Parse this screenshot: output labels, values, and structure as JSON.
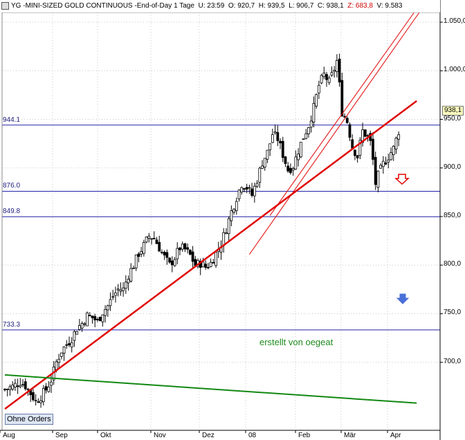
{
  "header": {
    "symbol": "YG",
    "name": "MINI-SIZED GOLD CONTINUOUS",
    "interval": "End-of-Day 1 Tage",
    "u": "U: 23:59",
    "o": "O: 920,7",
    "h": "H: 939,5",
    "l": "L: 906,7",
    "c": "C: 938,1",
    "z": "Z: 683,8",
    "v": "V: 9.583"
  },
  "ohne_orders_label": "Ohne Orders",
  "watermark": "erstellt von oegeat",
  "last_price": "938,1",
  "colors": {
    "candle": "#000000",
    "trend_red": "#e00000",
    "trend_green": "#118811",
    "hline": "#2222aa",
    "grid": "#c8c8c8",
    "arrow_red": "#e00000",
    "arrow_blue": "#4a6fd8"
  },
  "chart_data": {
    "type": "candlestick",
    "ylim": [
      630,
      1060
    ],
    "y_ticks": [
      "1.050,0",
      "1.000,0",
      "950,0",
      "900,0",
      "850,0",
      "800,0",
      "750,0",
      "700,0"
    ],
    "y_tick_values": [
      1050,
      1000,
      950,
      900,
      850,
      800,
      750,
      700
    ],
    "x_ticks": [
      "Aug",
      "Sep",
      "Okt",
      "Nov",
      "Dez",
      "08",
      "Feb",
      "Mär",
      "Apr"
    ],
    "horizontal_levels": [
      {
        "label": "944.1",
        "value": 944.1
      },
      {
        "label": "876.0",
        "value": 876.0
      },
      {
        "label": "849.8",
        "value": 849.8
      },
      {
        "label": "733.3",
        "value": 733.3
      }
    ],
    "close_path": [
      [
        0,
        672
      ],
      [
        3,
        675
      ],
      [
        6,
        680
      ],
      [
        8,
        676
      ],
      [
        10,
        668
      ],
      [
        12,
        660
      ],
      [
        14,
        665
      ],
      [
        16,
        672
      ],
      [
        18,
        682
      ],
      [
        20,
        700
      ],
      [
        22,
        712
      ],
      [
        24,
        718
      ],
      [
        26,
        725
      ],
      [
        28,
        735
      ],
      [
        30,
        740
      ],
      [
        32,
        748
      ],
      [
        34,
        746
      ],
      [
        36,
        742
      ],
      [
        38,
        752
      ],
      [
        40,
        758
      ],
      [
        42,
        768
      ],
      [
        44,
        775
      ],
      [
        46,
        775
      ],
      [
        48,
        790
      ],
      [
        50,
        800
      ],
      [
        52,
        812
      ],
      [
        54,
        820
      ],
      [
        56,
        830
      ],
      [
        58,
        828
      ],
      [
        60,
        818
      ],
      [
        62,
        808
      ],
      [
        64,
        800
      ],
      [
        66,
        808
      ],
      [
        68,
        818
      ],
      [
        70,
        816
      ],
      [
        72,
        810
      ],
      [
        74,
        800
      ],
      [
        76,
        802
      ],
      [
        78,
        798
      ],
      [
        80,
        802
      ],
      [
        82,
        812
      ],
      [
        84,
        822
      ],
      [
        86,
        838
      ],
      [
        88,
        855
      ],
      [
        90,
        870
      ],
      [
        92,
        884
      ],
      [
        94,
        880
      ],
      [
        96,
        872
      ],
      [
        98,
        888
      ],
      [
        100,
        906
      ],
      [
        102,
        916
      ],
      [
        104,
        935
      ],
      [
        106,
        930
      ],
      [
        108,
        914
      ],
      [
        110,
        898
      ],
      [
        112,
        902
      ],
      [
        114,
        918
      ],
      [
        116,
        932
      ],
      [
        118,
        944
      ],
      [
        120,
        962
      ],
      [
        122,
        985
      ],
      [
        124,
        996
      ],
      [
        126,
        988
      ],
      [
        128,
        1002
      ],
      [
        129,
        1010
      ],
      [
        130,
        985
      ],
      [
        131,
        958
      ],
      [
        133,
        948
      ],
      [
        135,
        922
      ],
      [
        137,
        912
      ],
      [
        139,
        938
      ],
      [
        141,
        932
      ],
      [
        142,
        926
      ],
      [
        143,
        908
      ],
      [
        144,
        884
      ],
      [
        145,
        892
      ],
      [
        147,
        904
      ],
      [
        149,
        912
      ],
      [
        151,
        920
      ],
      [
        153,
        938
      ]
    ],
    "trendlines": [
      {
        "color": "red",
        "from": [
          0,
          652
        ],
        "to": [
          160,
          969
        ]
      },
      {
        "color": "red",
        "from": [
          95,
          811
        ],
        "to": [
          161,
          1060
        ]
      },
      {
        "color": "red",
        "from": [
          103,
          851
        ],
        "to": [
          159,
          1060
        ]
      },
      {
        "color": "green",
        "from": [
          0,
          687
        ],
        "to": [
          160,
          658
        ]
      }
    ],
    "last_value": 938.1
  }
}
